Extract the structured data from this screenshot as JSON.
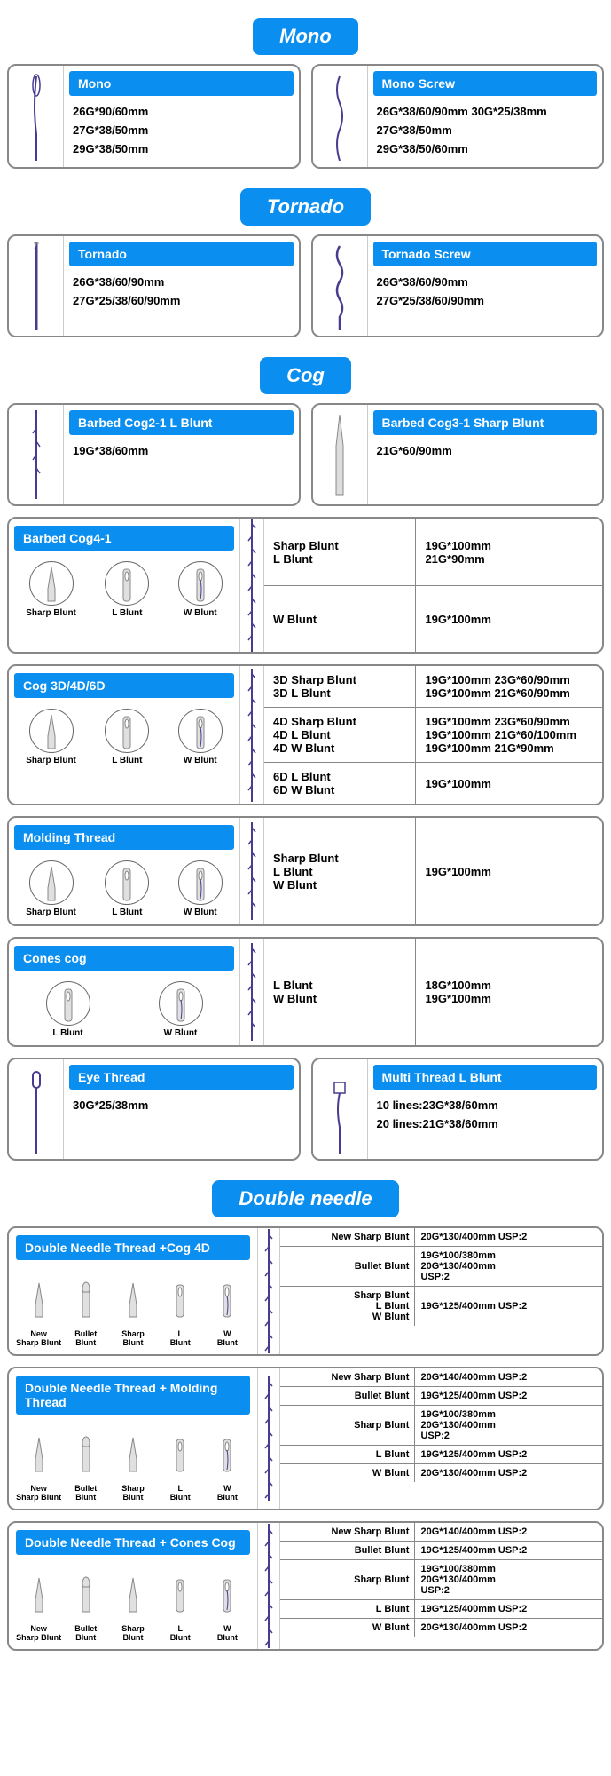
{
  "colors": {
    "primary": "#0a8ef0",
    "border": "#888",
    "thread": "#4a3b8f"
  },
  "sections": {
    "mono": {
      "title": "Mono"
    },
    "tornado": {
      "title": "Tornado"
    },
    "cog": {
      "title": "Cog"
    },
    "double": {
      "title": "Double needle"
    }
  },
  "mono_cards": [
    {
      "title": "Mono",
      "specs": [
        "26G*90/60mm",
        "27G*38/50mm",
        "29G*38/50mm"
      ]
    },
    {
      "title": "Mono Screw",
      "specs": [
        "26G*38/60/90mm 30G*25/38mm",
        "27G*38/50mm",
        "29G*38/50/60mm"
      ]
    }
  ],
  "tornado_cards": [
    {
      "title": "Tornado",
      "specs": [
        "26G*38/60/90mm",
        "27G*25/38/60/90mm"
      ]
    },
    {
      "title": "Tornado Screw",
      "specs": [
        "26G*38/60/90mm",
        "27G*25/38/60/90mm"
      ]
    }
  ],
  "cog_simple": [
    {
      "title": "Barbed Cog2-1 L Blunt",
      "specs": [
        "19G*38/60mm"
      ]
    },
    {
      "title": "Barbed Cog3-1 Sharp Blunt",
      "specs": [
        "21G*60/90mm"
      ]
    }
  ],
  "cog_wide": [
    {
      "title": "Barbed Cog4-1",
      "icons": [
        "Sharp Blunt",
        "L Blunt",
        "W Blunt"
      ],
      "rows": [
        {
          "labels": [
            "Sharp Blunt",
            "L Blunt"
          ],
          "values": [
            "19G*100mm",
            "21G*90mm"
          ]
        },
        {
          "labels": [
            "W Blunt"
          ],
          "values": [
            "19G*100mm"
          ]
        }
      ]
    },
    {
      "title": "Cog 3D/4D/6D",
      "icons": [
        "Sharp Blunt",
        "L Blunt",
        "W Blunt"
      ],
      "rows": [
        {
          "labels": [
            "3D Sharp Blunt",
            "3D L Blunt"
          ],
          "values": [
            "19G*100mm 23G*60/90mm",
            "19G*100mm 21G*60/90mm"
          ]
        },
        {
          "labels": [
            "4D Sharp Blunt",
            "4D L Blunt",
            "4D W Blunt"
          ],
          "values": [
            "19G*100mm 23G*60/90mm",
            "19G*100mm 21G*60/100mm",
            "19G*100mm 21G*90mm"
          ]
        },
        {
          "labels": [
            "6D L Blunt",
            "6D W Blunt"
          ],
          "values": [
            "19G*100mm"
          ]
        }
      ]
    },
    {
      "title": "Molding Thread",
      "icons": [
        "Sharp Blunt",
        "L Blunt",
        "W Blunt"
      ],
      "rows": [
        {
          "labels": [
            "Sharp Blunt",
            "L Blunt",
            "W Blunt"
          ],
          "values": [
            "19G*100mm"
          ]
        }
      ]
    },
    {
      "title": "Cones cog",
      "icons": [
        "L Blunt",
        "W Blunt"
      ],
      "rows": [
        {
          "labels": [
            "L Blunt",
            "W Blunt"
          ],
          "values": [
            "18G*100mm",
            "19G*100mm"
          ]
        }
      ]
    }
  ],
  "eye_cards": [
    {
      "title": "Eye Thread",
      "specs": [
        "30G*25/38mm"
      ]
    },
    {
      "title": "Multi Thread L Blunt",
      "specs": [
        "10 lines:23G*38/60mm",
        "20 lines:21G*38/60mm"
      ]
    }
  ],
  "dn_cards": [
    {
      "title": "Double Needle Thread +Cog 4D",
      "icons": [
        "New Sharp Blunt",
        "Bullet Blunt",
        "Sharp Blunt",
        "L Blunt",
        "W Blunt"
      ],
      "rows": [
        {
          "label": "New Sharp Blunt",
          "value": "20G*130/400mm USP:2"
        },
        {
          "label": "Bullet Blunt",
          "value": "19G*100/380mm\n20G*130/400mm\nUSP:2"
        },
        {
          "label": "Sharp Blunt\nL Blunt\nW Blunt",
          "value": "19G*125/400mm USP:2"
        }
      ]
    },
    {
      "title": "Double Needle Thread + Molding Thread",
      "icons": [
        "New Sharp Blunt",
        "Bullet Blunt",
        "Sharp Blunt",
        "L Blunt",
        "W Blunt"
      ],
      "rows": [
        {
          "label": "New Sharp Blunt",
          "value": "20G*140/400mm USP:2"
        },
        {
          "label": "Bullet Blunt",
          "value": "19G*125/400mm USP:2"
        },
        {
          "label": "Sharp Blunt",
          "value": "19G*100/380mm\n20G*130/400mm\nUSP:2"
        },
        {
          "label": "L Blunt",
          "value": "19G*125/400mm USP:2"
        },
        {
          "label": "W Blunt",
          "value": "20G*130/400mm USP:2"
        }
      ]
    },
    {
      "title": "Double Needle Thread + Cones Cog",
      "icons": [
        "New Sharp Blunt",
        "Bullet Blunt",
        "Sharp Blunt",
        "L Blunt",
        "W Blunt"
      ],
      "rows": [
        {
          "label": "New Sharp Blunt",
          "value": "20G*140/400mm USP:2"
        },
        {
          "label": "Bullet Blunt",
          "value": "19G*125/400mm USP:2"
        },
        {
          "label": "Sharp Blunt",
          "value": "19G*100/380mm\n20G*130/400mm\nUSP:2"
        },
        {
          "label": "L Blunt",
          "value": "19G*125/400mm USP:2"
        },
        {
          "label": "W Blunt",
          "value": "20G*130/400mm USP:2"
        }
      ]
    }
  ]
}
